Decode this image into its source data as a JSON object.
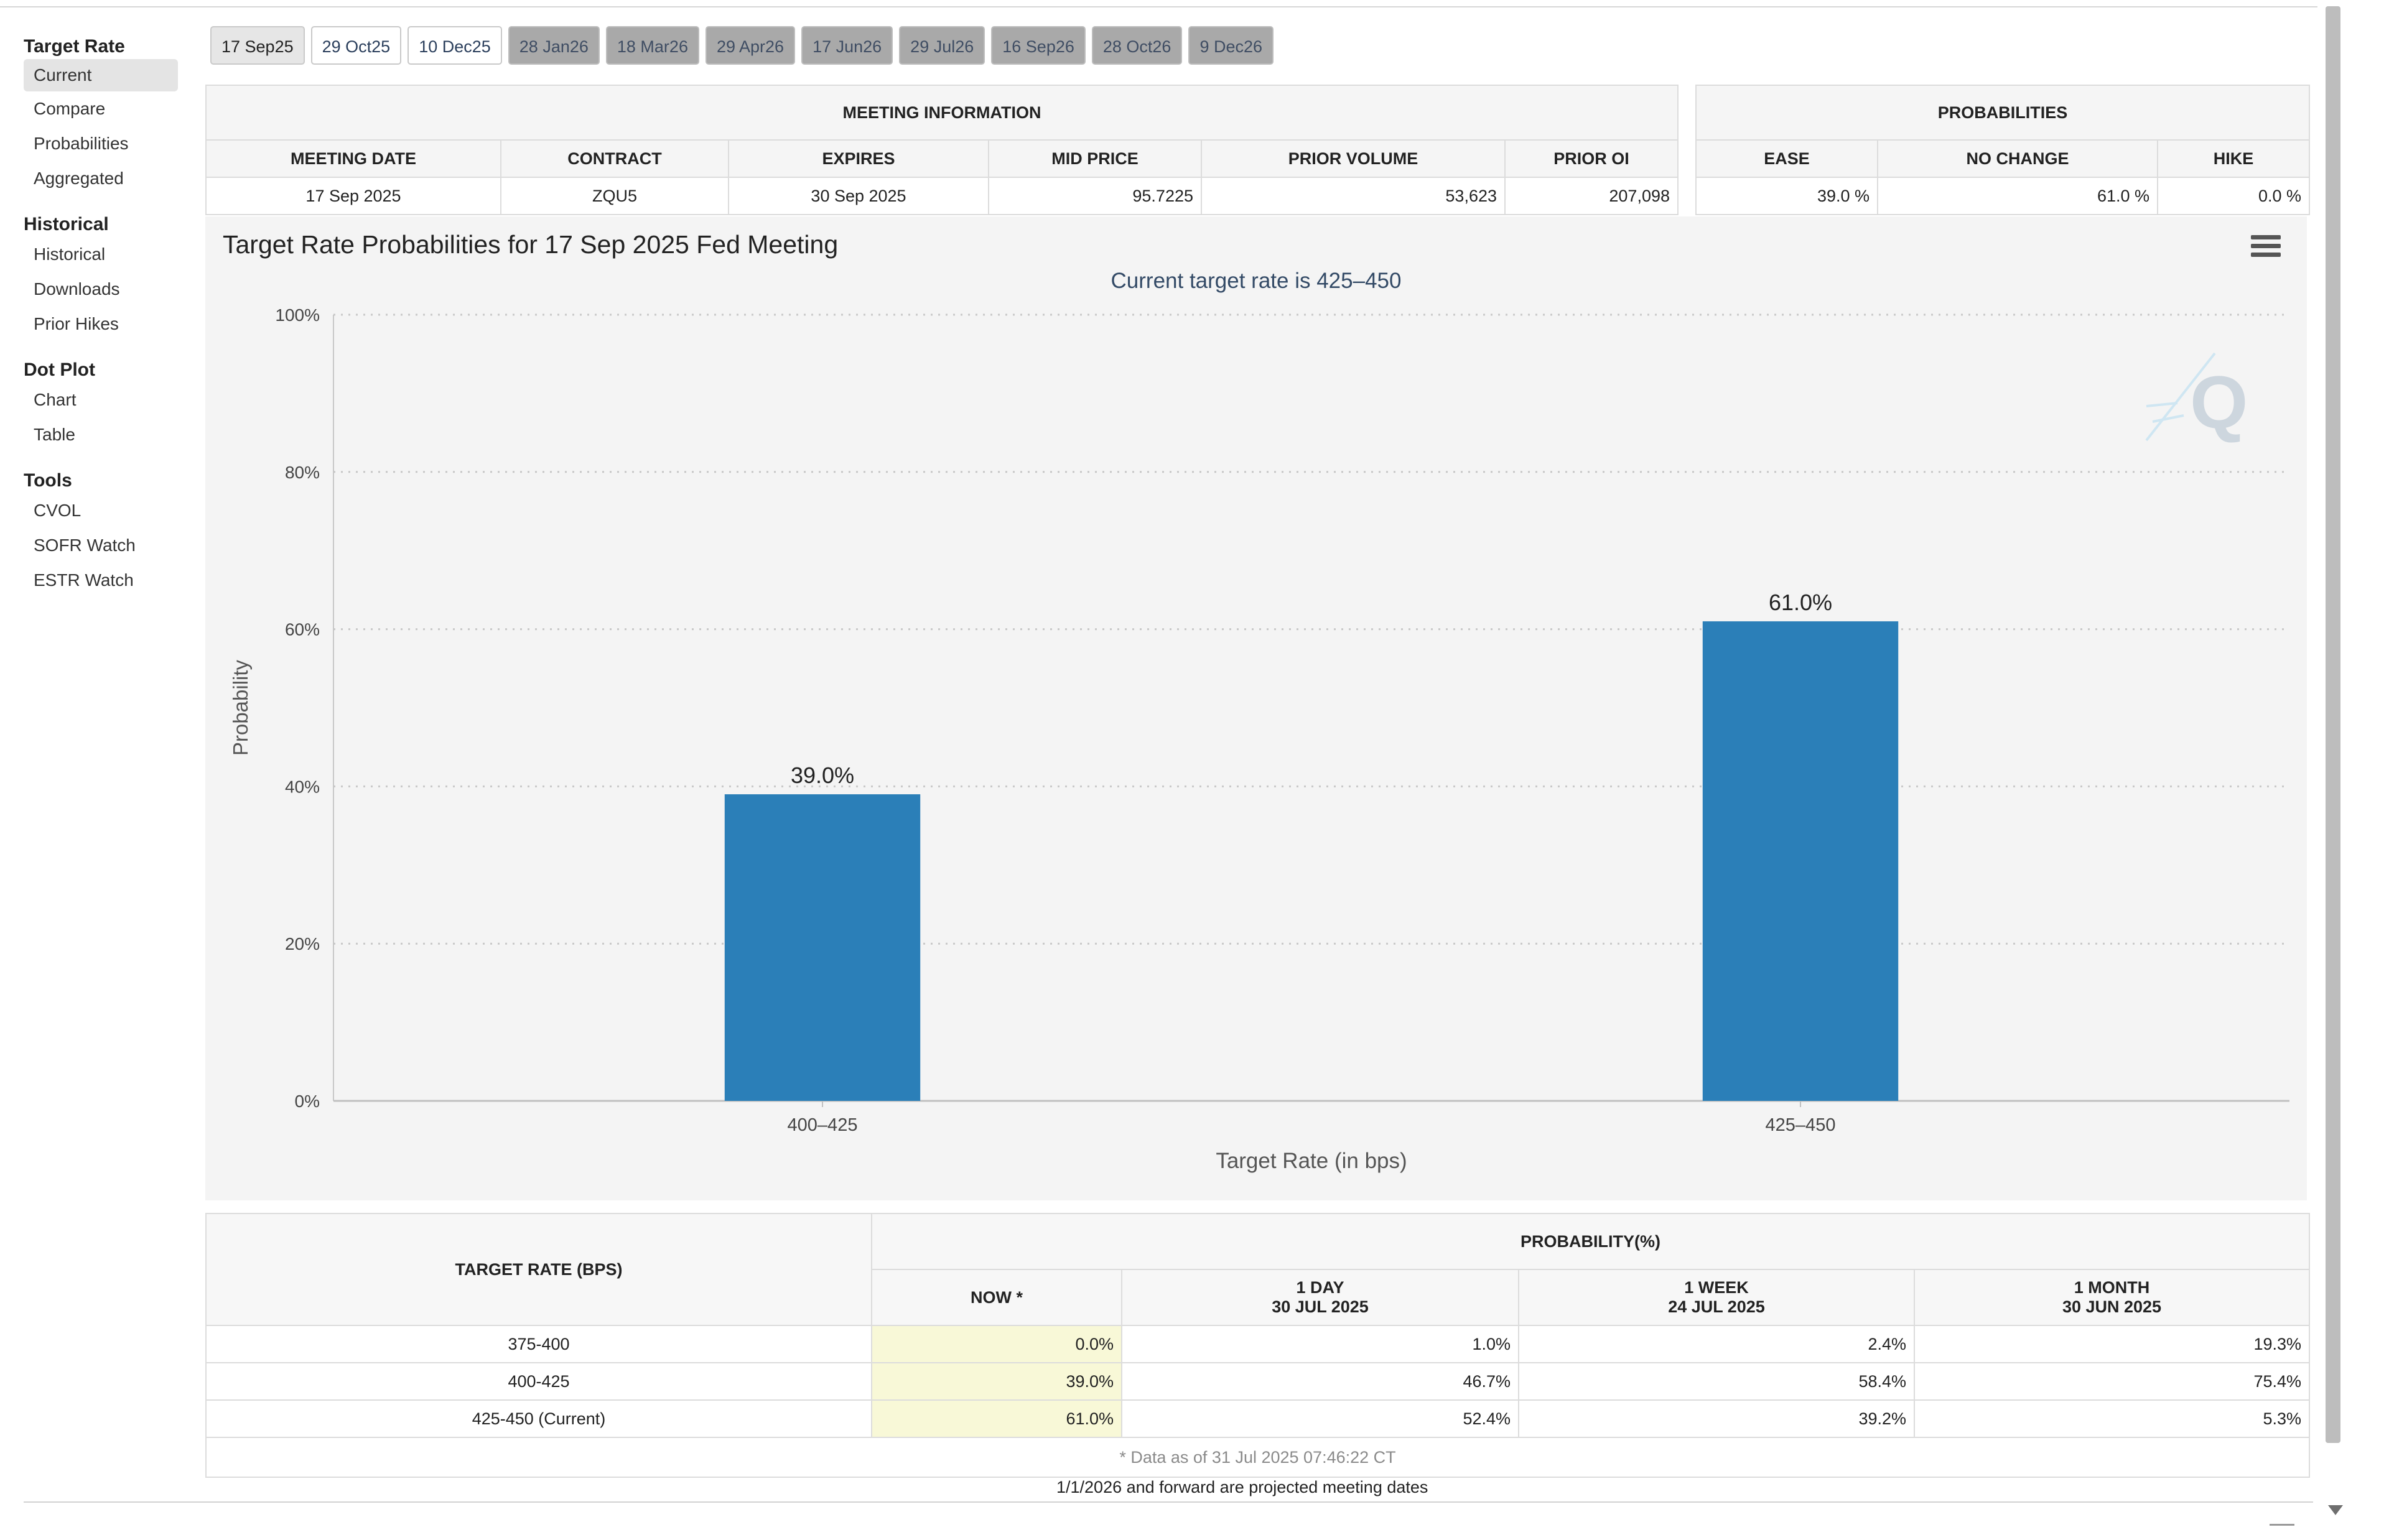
{
  "sidebar": {
    "groups": [
      {
        "heading": "Target Rate",
        "items": [
          "Current",
          "Compare",
          "Probabilities",
          "Aggregated"
        ]
      },
      {
        "heading": "Historical",
        "items": [
          "Historical",
          "Downloads",
          "Prior Hikes"
        ]
      },
      {
        "heading": "Dot Plot",
        "items": [
          "Chart",
          "Table"
        ]
      },
      {
        "heading": "Tools",
        "items": [
          "CVOL",
          "SOFR Watch",
          "ESTR Watch"
        ]
      }
    ]
  },
  "tabs": [
    {
      "label": "17 Sep25",
      "state": "active"
    },
    {
      "label": "29 Oct25",
      "state": "normal"
    },
    {
      "label": "10 Dec25",
      "state": "normal"
    },
    {
      "label": "28 Jan26",
      "state": "projected"
    },
    {
      "label": "18 Mar26",
      "state": "projected"
    },
    {
      "label": "29 Apr26",
      "state": "projected"
    },
    {
      "label": "17 Jun26",
      "state": "projected"
    },
    {
      "label": "29 Jul26",
      "state": "projected"
    },
    {
      "label": "16 Sep26",
      "state": "projected"
    },
    {
      "label": "28 Oct26",
      "state": "projected"
    },
    {
      "label": "9 Dec26",
      "state": "projected"
    }
  ],
  "meeting_info": {
    "title": "MEETING INFORMATION",
    "headers": [
      "MEETING DATE",
      "CONTRACT",
      "EXPIRES",
      "MID PRICE",
      "PRIOR VOLUME",
      "PRIOR OI"
    ],
    "values": [
      "17 Sep 2025",
      "ZQU5",
      "30 Sep 2025",
      "95.7225",
      "53,623",
      "207,098"
    ]
  },
  "probabilities": {
    "title": "PROBABILITIES",
    "headers": [
      "EASE",
      "NO CHANGE",
      "HIKE"
    ],
    "values": [
      "39.0 %",
      "61.0 %",
      "0.0 %"
    ]
  },
  "chart": {
    "title": "Target Rate Probabilities for 17 Sep 2025 Fed Meeting",
    "subtitle": "Current target rate is 425–450",
    "bar_color": "#2b7fb8",
    "watermark": "Q"
  },
  "chart_data": {
    "type": "bar",
    "title": "Target Rate Probabilities for 17 Sep 2025 Fed Meeting",
    "subtitle": "Current target rate is 425–450",
    "categories": [
      "400–425",
      "425–450"
    ],
    "values": [
      39.0,
      61.0
    ],
    "data_labels": [
      "39.0%",
      "61.0%"
    ],
    "xlabel": "Target Rate (in bps)",
    "ylabel": "Probability",
    "ylim": [
      0,
      100
    ],
    "yticks": [
      0,
      20,
      40,
      60,
      80,
      100
    ],
    "ytick_labels": [
      "0%",
      "20%",
      "40%",
      "60%",
      "80%",
      "100%"
    ],
    "grid": true
  },
  "history": {
    "target_rate_header": "TARGET RATE (BPS)",
    "probability_header": "PROBABILITY(%)",
    "columns": [
      {
        "line1": "NOW *",
        "line2": ""
      },
      {
        "line1": "1 DAY",
        "line2": "30 JUL 2025"
      },
      {
        "line1": "1 WEEK",
        "line2": "24 JUL 2025"
      },
      {
        "line1": "1 MONTH",
        "line2": "30 JUN 2025"
      }
    ],
    "rows": [
      {
        "rate": "375-400",
        "values": [
          "0.0%",
          "1.0%",
          "2.4%",
          "19.3%"
        ]
      },
      {
        "rate": "400-425",
        "values": [
          "39.0%",
          "46.7%",
          "58.4%",
          "75.4%"
        ]
      },
      {
        "rate": "425-450 (Current)",
        "values": [
          "61.0%",
          "52.4%",
          "39.2%",
          "5.3%"
        ]
      }
    ],
    "footnote": "* Data as of 31 Jul 2025 07:46:22 CT"
  },
  "projected_note": "1/1/2026 and forward are projected meeting dates"
}
